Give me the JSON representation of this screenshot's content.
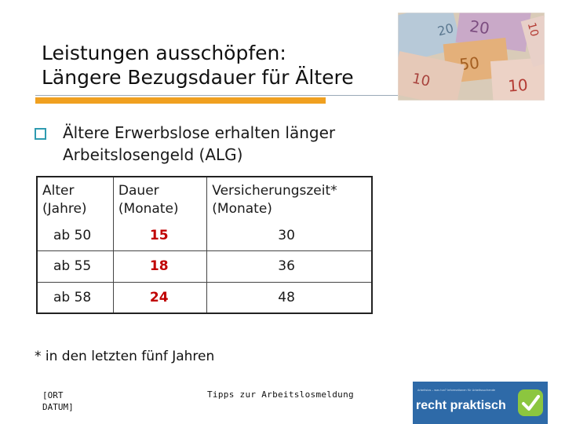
{
  "slide": {
    "title_line1": "Leistungen ausschöpfen:",
    "title_line2": "Längere Bezugsdauer für Ältere",
    "bullet_text": "Ältere Erwerbslose erhalten länger Arbeitslosengeld (ALG)",
    "footnote": "* in den letzten fünf Jahren"
  },
  "table": {
    "headers": [
      {
        "line1": "Alter",
        "line2": "(Jahre)"
      },
      {
        "line1": "Dauer",
        "line2": "(Monate)"
      },
      {
        "line1": "Versicherungszeit*",
        "line2": "(Monate)"
      }
    ],
    "rows": [
      {
        "alter": "ab 50",
        "dauer": "15",
        "versicherungszeit": "30"
      },
      {
        "alter": "ab 55",
        "dauer": "18",
        "versicherungszeit": "36"
      },
      {
        "alter": "ab 58",
        "dauer": "24",
        "versicherungszeit": "48"
      }
    ]
  },
  "footer": {
    "date_line1": "[ORT",
    "date_line2": "DATUM]",
    "center_text": "Tipps zur Arbeitslosmeldung",
    "logo_text": "recht praktisch",
    "logo_small_text": "Arbeitslos – was tun? Informationen für Arbeitssuchende"
  },
  "colors": {
    "accent_orange": "#f0a020",
    "bullet_teal": "#2f9bb0",
    "value_red": "#c00000",
    "logo_blue": "#2e6aa8",
    "logo_green": "#8cc63f"
  },
  "icons": {
    "bullet": "hollow-square-bullet-icon",
    "logo_mark": "checkmark-icon",
    "photo": "euro-banknotes-photo"
  }
}
